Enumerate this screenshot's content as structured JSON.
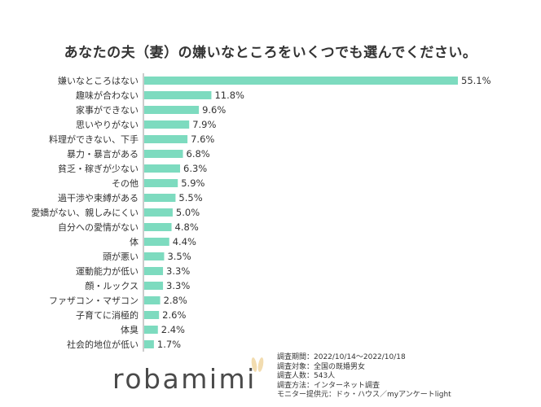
{
  "title": "あなたの夫（妻）の嫌いなところをいくつでも選んでください。",
  "colors": {
    "bar": "#7ddbbf",
    "axis": "#999999",
    "text": "#333333",
    "logo": "#4a4a4a",
    "logo_ears": "#f2dcb0"
  },
  "chart_data": {
    "type": "bar",
    "orientation": "horizontal",
    "title": "あなたの夫（妻）の嫌いなところをいくつでも選んでください。",
    "unit": "%",
    "categories": [
      "嫌いなところはない",
      "趣味が合わない",
      "家事ができない",
      "思いやりがない",
      "料理ができない、下手",
      "暴力・暴言がある",
      "貧乏・稼ぎが少ない",
      "その他",
      "過干渉や束縛がある",
      "愛嬌がない、親しみにくい",
      "自分への愛情がない",
      "体",
      "頭が悪い",
      "運動能力が低い",
      "顔・ルックス",
      "ファザコン・マザコン",
      "子育てに消極的",
      "体臭",
      "社会的地位が低い"
    ],
    "values": [
      55.1,
      11.8,
      9.6,
      7.9,
      7.6,
      6.8,
      6.3,
      5.9,
      5.5,
      5.0,
      4.8,
      4.4,
      3.5,
      3.3,
      3.3,
      2.8,
      2.6,
      2.4,
      1.7
    ],
    "value_labels": [
      "55.1%",
      "11.8%",
      "9.6%",
      "7.9%",
      "7.6%",
      "6.8%",
      "6.3%",
      "5.9%",
      "5.5%",
      "5.0%",
      "4.8%",
      "4.4%",
      "3.5%",
      "3.3%",
      "3.3%",
      "2.8%",
      "2.6%",
      "2.4%",
      "1.7%"
    ],
    "grid": false,
    "legend": "none"
  },
  "logo": {
    "text": "robamimi"
  },
  "survey_notes": [
    "調査期間：2022/10/14～2022/10/18",
    "調査対象：全国の既婚男女",
    "調査人数：543人",
    "調査方法：インターネット調査",
    "モニター提供元：ドゥ・ハウス／myアンケートlight"
  ]
}
